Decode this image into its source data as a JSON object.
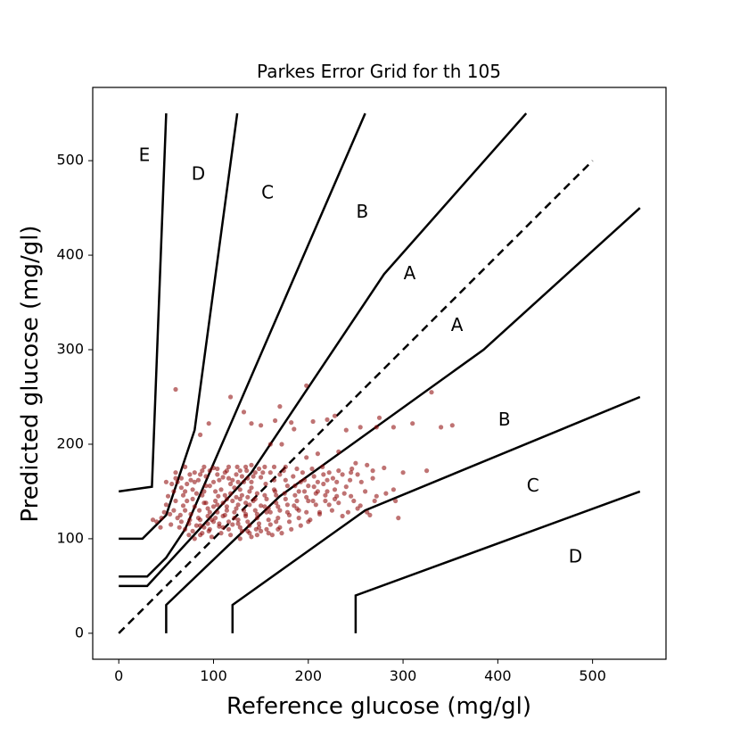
{
  "chart_data": {
    "type": "scatter",
    "title": "Parkes Error Grid for th 105",
    "xlabel": "Reference glucose (mg/gl)",
    "ylabel": "Predicted glucose (mg/gl)",
    "xlim": [
      -27.5,
      577.5
    ],
    "ylim": [
      -27.5,
      577.5
    ],
    "x_ticks": [
      0,
      100,
      200,
      300,
      400,
      500
    ],
    "y_ticks": [
      0,
      100,
      200,
      300,
      400,
      500
    ],
    "grid": false,
    "colors": {
      "points": "#8b0000",
      "lines": "#000000"
    },
    "diagonal": {
      "style": "dashed",
      "points": [
        [
          0,
          0
        ],
        [
          500,
          500
        ]
      ]
    },
    "zone_boundaries": [
      {
        "name": "A-upper",
        "points": [
          [
            0,
            50
          ],
          [
            30,
            50
          ],
          [
            140,
            170
          ],
          [
            280,
            380
          ],
          [
            430,
            550
          ]
        ]
      },
      {
        "name": "A-lower",
        "points": [
          [
            50,
            0
          ],
          [
            50,
            30
          ],
          [
            170,
            145
          ],
          [
            385,
            300
          ],
          [
            550,
            450
          ]
        ]
      },
      {
        "name": "B-upper",
        "points": [
          [
            0,
            60
          ],
          [
            30,
            60
          ],
          [
            50,
            80
          ],
          [
            70,
            110
          ],
          [
            260,
            550
          ]
        ]
      },
      {
        "name": "B-lower",
        "points": [
          [
            120,
            0
          ],
          [
            120,
            30
          ],
          [
            260,
            130
          ],
          [
            550,
            250
          ]
        ]
      },
      {
        "name": "C-upper",
        "points": [
          [
            0,
            100
          ],
          [
            25,
            100
          ],
          [
            50,
            125
          ],
          [
            80,
            215
          ],
          [
            125,
            550
          ]
        ]
      },
      {
        "name": "C-lower",
        "points": [
          [
            250,
            0
          ],
          [
            250,
            40
          ],
          [
            550,
            150
          ]
        ]
      },
      {
        "name": "D-upper",
        "points": [
          [
            0,
            150
          ],
          [
            35,
            155
          ],
          [
            50,
            550
          ]
        ]
      }
    ],
    "zone_labels": [
      {
        "text": "E",
        "x": 27,
        "y": 505
      },
      {
        "text": "D",
        "x": 84,
        "y": 485
      },
      {
        "text": "C",
        "x": 157,
        "y": 465
      },
      {
        "text": "B",
        "x": 257,
        "y": 445
      },
      {
        "text": "A",
        "x": 307,
        "y": 380
      },
      {
        "text": "A",
        "x": 357,
        "y": 325
      },
      {
        "text": "B",
        "x": 407,
        "y": 225
      },
      {
        "text": "C",
        "x": 437,
        "y": 155
      },
      {
        "text": "D",
        "x": 482,
        "y": 80
      }
    ],
    "points": [
      [
        60,
        258
      ],
      [
        118,
        250
      ],
      [
        132,
        234
      ],
      [
        170,
        240
      ],
      [
        198,
        262
      ],
      [
        140,
        222
      ],
      [
        95,
        222
      ],
      [
        86,
        210
      ],
      [
        150,
        220
      ],
      [
        165,
        225
      ],
      [
        182,
        223
      ],
      [
        205,
        224
      ],
      [
        220,
        226
      ],
      [
        228,
        230
      ],
      [
        240,
        215
      ],
      [
        255,
        218
      ],
      [
        275,
        228
      ],
      [
        290,
        218
      ],
      [
        272,
        218
      ],
      [
        310,
        222
      ],
      [
        330,
        255
      ],
      [
        340,
        218
      ],
      [
        352,
        220
      ],
      [
        185,
        216
      ],
      [
        160,
        200
      ],
      [
        172,
        200
      ],
      [
        210,
        190
      ],
      [
        198,
        186
      ],
      [
        232,
        192
      ],
      [
        250,
        180
      ],
      [
        262,
        178
      ],
      [
        280,
        175
      ],
      [
        300,
        170
      ],
      [
        325,
        172
      ],
      [
        290,
        152
      ],
      [
        270,
        140
      ],
      [
        255,
        135
      ],
      [
        265,
        125
      ],
      [
        295,
        122
      ],
      [
        245,
        145
      ],
      [
        225,
        130
      ],
      [
        236,
        124
      ],
      [
        212,
        128
      ],
      [
        205,
        140
      ],
      [
        230,
        160
      ],
      [
        245,
        170
      ],
      [
        252,
        168
      ],
      [
        268,
        172
      ],
      [
        260,
        150
      ],
      [
        222,
        170
      ],
      [
        215,
        176
      ],
      [
        192,
        160
      ],
      [
        178,
        156
      ],
      [
        175,
        148
      ],
      [
        165,
        150
      ],
      [
        155,
        158
      ],
      [
        150,
        135
      ],
      [
        160,
        128
      ],
      [
        170,
        130
      ],
      [
        180,
        125
      ],
      [
        190,
        122
      ],
      [
        200,
        118
      ],
      [
        185,
        135
      ],
      [
        145,
        110
      ],
      [
        140,
        102
      ],
      [
        130,
        108
      ],
      [
        120,
        115
      ],
      [
        110,
        112
      ],
      [
        100,
        118
      ],
      [
        95,
        108
      ],
      [
        90,
        112
      ],
      [
        80,
        100
      ],
      [
        85,
        130
      ],
      [
        75,
        120
      ],
      [
        65,
        125
      ],
      [
        55,
        115
      ],
      [
        45,
        122
      ],
      [
        40,
        118
      ],
      [
        60,
        140
      ],
      [
        70,
        150
      ],
      [
        62,
        160
      ],
      [
        75,
        168
      ],
      [
        88,
        172
      ],
      [
        100,
        175
      ],
      [
        112,
        170
      ],
      [
        125,
        176
      ],
      [
        135,
        172
      ],
      [
        148,
        174
      ],
      [
        58,
        130
      ],
      [
        68,
        135
      ],
      [
        78,
        142
      ],
      [
        92,
        138
      ],
      [
        105,
        145
      ],
      [
        118,
        148
      ],
      [
        128,
        152
      ],
      [
        138,
        150
      ],
      [
        142,
        140
      ],
      [
        132,
        130
      ],
      [
        122,
        128
      ],
      [
        112,
        125
      ],
      [
        102,
        122
      ],
      [
        96,
        128
      ],
      [
        86,
        120
      ],
      [
        76,
        126
      ],
      [
        66,
        118
      ],
      [
        70,
        110
      ],
      [
        82,
        114
      ],
      [
        94,
        116
      ],
      [
        106,
        113
      ],
      [
        116,
        118
      ],
      [
        126,
        120
      ],
      [
        136,
        118
      ],
      [
        146,
        122
      ],
      [
        156,
        128
      ],
      [
        166,
        138
      ],
      [
        176,
        142
      ],
      [
        186,
        146
      ],
      [
        196,
        150
      ],
      [
        206,
        155
      ],
      [
        216,
        158
      ],
      [
        100,
        160
      ],
      [
        110,
        165
      ],
      [
        120,
        162
      ],
      [
        130,
        166
      ],
      [
        140,
        160
      ],
      [
        150,
        165
      ],
      [
        160,
        170
      ],
      [
        170,
        168
      ],
      [
        60,
        170
      ],
      [
        72,
        158
      ],
      [
        84,
        162
      ],
      [
        96,
        156
      ],
      [
        108,
        152
      ],
      [
        118,
        158
      ],
      [
        128,
        142
      ],
      [
        138,
        136
      ],
      [
        88,
        146
      ],
      [
        78,
        152
      ],
      [
        68,
        146
      ],
      [
        58,
        150
      ],
      [
        92,
        166
      ],
      [
        104,
        168
      ],
      [
        114,
        172
      ],
      [
        124,
        168
      ],
      [
        134,
        176
      ],
      [
        144,
        170
      ],
      [
        154,
        176
      ],
      [
        164,
        162
      ],
      [
        174,
        172
      ],
      [
        184,
        166
      ],
      [
        194,
        170
      ],
      [
        204,
        174
      ],
      [
        210,
        160
      ],
      [
        220,
        150
      ],
      [
        230,
        145
      ],
      [
        240,
        155
      ],
      [
        200,
        140
      ],
      [
        190,
        130
      ],
      [
        180,
        118
      ],
      [
        170,
        112
      ],
      [
        160,
        115
      ],
      [
        150,
        108
      ],
      [
        162,
        104
      ],
      [
        172,
        106
      ],
      [
        182,
        110
      ],
      [
        192,
        114
      ],
      [
        202,
        120
      ],
      [
        212,
        126
      ],
      [
        222,
        136
      ],
      [
        232,
        138
      ],
      [
        242,
        128
      ],
      [
        252,
        132
      ],
      [
        262,
        128
      ],
      [
        272,
        145
      ],
      [
        282,
        148
      ],
      [
        292,
        140
      ],
      [
        86,
        104
      ],
      [
        98,
        102
      ],
      [
        108,
        106
      ],
      [
        128,
        112
      ],
      [
        138,
        114
      ],
      [
        148,
        116
      ],
      [
        158,
        120
      ],
      [
        168,
        122
      ],
      [
        178,
        128
      ],
      [
        188,
        132
      ],
      [
        198,
        128
      ],
      [
        208,
        136
      ],
      [
        218,
        140
      ],
      [
        228,
        142
      ],
      [
        238,
        148
      ],
      [
        248,
        140
      ],
      [
        64,
        112
      ],
      [
        74,
        104
      ],
      [
        54,
        126
      ],
      [
        50,
        136
      ],
      [
        52,
        145
      ],
      [
        56,
        158
      ],
      [
        66,
        164
      ],
      [
        80,
        160
      ],
      [
        90,
        150
      ],
      [
        102,
        140
      ],
      [
        114,
        134
      ],
      [
        126,
        136
      ],
      [
        136,
        144
      ],
      [
        146,
        148
      ],
      [
        156,
        142
      ],
      [
        166,
        146
      ],
      [
        84,
        122
      ],
      [
        94,
        124
      ],
      [
        104,
        128
      ],
      [
        114,
        130
      ],
      [
        124,
        132
      ],
      [
        134,
        126
      ],
      [
        144,
        130
      ],
      [
        154,
        134
      ],
      [
        70,
        130
      ],
      [
        80,
        134
      ],
      [
        90,
        138
      ],
      [
        100,
        134
      ],
      [
        110,
        138
      ],
      [
        120,
        140
      ],
      [
        130,
        146
      ],
      [
        140,
        154
      ],
      [
        176,
        162
      ],
      [
        186,
        156
      ],
      [
        196,
        162
      ],
      [
        206,
        166
      ],
      [
        216,
        168
      ],
      [
        226,
        164
      ],
      [
        236,
        168
      ],
      [
        246,
        174
      ],
      [
        96,
        110
      ],
      [
        106,
        116
      ],
      [
        116,
        110
      ],
      [
        126,
        116
      ],
      [
        136,
        108
      ],
      [
        146,
        104
      ],
      [
        156,
        110
      ],
      [
        166,
        118
      ],
      [
        72,
        140
      ],
      [
        82,
        148
      ],
      [
        92,
        156
      ],
      [
        102,
        150
      ],
      [
        112,
        146
      ],
      [
        122,
        154
      ],
      [
        132,
        160
      ],
      [
        142,
        166
      ],
      [
        62,
        122
      ],
      [
        74,
        116
      ],
      [
        86,
        114
      ],
      [
        98,
        120
      ],
      [
        110,
        124
      ],
      [
        122,
        122
      ],
      [
        134,
        124
      ],
      [
        146,
        126
      ],
      [
        158,
        132
      ],
      [
        168,
        134
      ],
      [
        178,
        136
      ],
      [
        188,
        140
      ],
      [
        198,
        144
      ],
      [
        208,
        148
      ],
      [
        218,
        146
      ],
      [
        228,
        152
      ],
      [
        104,
        174
      ],
      [
        116,
        176
      ],
      [
        128,
        172
      ],
      [
        140,
        178
      ],
      [
        152,
        170
      ],
      [
        164,
        176
      ],
      [
        176,
        176
      ],
      [
        188,
        174
      ],
      [
        80,
        170
      ],
      [
        90,
        176
      ],
      [
        70,
        176
      ],
      [
        60,
        164
      ],
      [
        50,
        160
      ],
      [
        48,
        128
      ],
      [
        44,
        112
      ],
      [
        36,
        120
      ],
      [
        190,
        150
      ],
      [
        200,
        156
      ],
      [
        210,
        150
      ],
      [
        220,
        162
      ],
      [
        232,
        172
      ],
      [
        244,
        162
      ],
      [
        256,
        160
      ],
      [
        268,
        164
      ],
      [
        94,
        132
      ],
      [
        104,
        136
      ],
      [
        114,
        142
      ],
      [
        124,
        144
      ],
      [
        134,
        138
      ],
      [
        144,
        142
      ],
      [
        154,
        146
      ],
      [
        164,
        152
      ],
      [
        78,
        108
      ],
      [
        88,
        106
      ],
      [
        118,
        104
      ],
      [
        128,
        100
      ],
      [
        138,
        106
      ],
      [
        148,
        112
      ],
      [
        158,
        106
      ],
      [
        168,
        110
      ],
      [
        66,
        154
      ],
      [
        76,
        162
      ],
      [
        86,
        168
      ],
      [
        96,
        172
      ],
      [
        106,
        162
      ],
      [
        116,
        164
      ],
      [
        126,
        160
      ],
      [
        136,
        164
      ]
    ]
  }
}
